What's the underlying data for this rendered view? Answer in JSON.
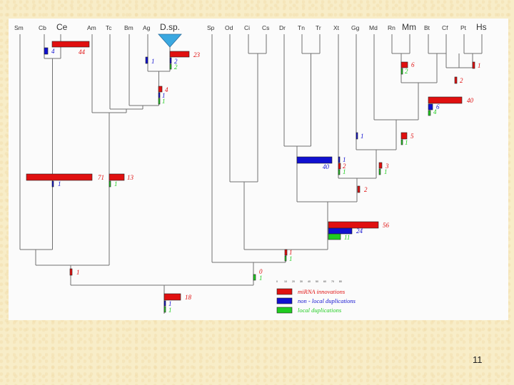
{
  "colors": {
    "innovation": "#e01010",
    "nonlocal": "#1010d0",
    "local": "#20cc20",
    "branch": "#707070",
    "triangle": "#3aa8e0"
  },
  "taxa": {
    "sm": "Sm",
    "cb": "Cb",
    "ce": "Ce",
    "am": "Am",
    "tc": "Tc",
    "bm": "Bm",
    "ag": "Ag",
    "dsp": "D.sp.",
    "sp": "Sp",
    "od": "Od",
    "ci": "Ci",
    "cs": "Cs",
    "dr": "Dr",
    "tn": "Tn",
    "tr": "Tr",
    "xt": "Xt",
    "gg": "Gg",
    "md": "Md",
    "rn": "Rn",
    "mm": "Mm",
    "bt": "Bt",
    "cf": "Cf",
    "pt": "Pt",
    "hs": "Hs"
  },
  "counts": {
    "ce_innov": "44",
    "ce_nonlocal": "4",
    "dsp_innov": "23",
    "dsp_nonlocal": "2",
    "dsp_local": "2",
    "ag_nonlocal": "1",
    "dip_innov": "4",
    "dip_nonlocal": "1",
    "dip_local": "1",
    "ecd_innov": "71",
    "ecd_nonlocal": "1",
    "ins_innov": "13",
    "ins_local": "1",
    "proto_innov": "1",
    "bil_innov": "18",
    "bil_nonlocal": "1",
    "bil_local": "1",
    "deut_innov": "0",
    "deut_local": "1",
    "chord_innov": "1",
    "chord_local": "1",
    "mm_innov": "6",
    "mm_local": "2",
    "hs_innov": "1",
    "pt_innov": "2",
    "euth_innov": "40",
    "euth_nonlocal": "6",
    "euth_local": "4",
    "gg_nonlocal": "1",
    "mam_innov": "5",
    "mam_local": "1",
    "fish_nonlocal": "40",
    "xt_nonlocal": "1",
    "xt_innov": "2",
    "xt_local": "1",
    "amn_innov": "3",
    "amn_local": "1",
    "tet_innov": "2",
    "vert_innov": "56",
    "vert_nonlocal": "24",
    "vert_local": "11"
  },
  "legend": {
    "scale_ticks": [
      "0",
      "10",
      "20",
      "30",
      "40",
      "50",
      "60",
      "70",
      "80"
    ],
    "innovations": "miRNA innovations",
    "nonlocal": "non - local duplications",
    "local": "local duplications"
  },
  "page_number": "11"
}
